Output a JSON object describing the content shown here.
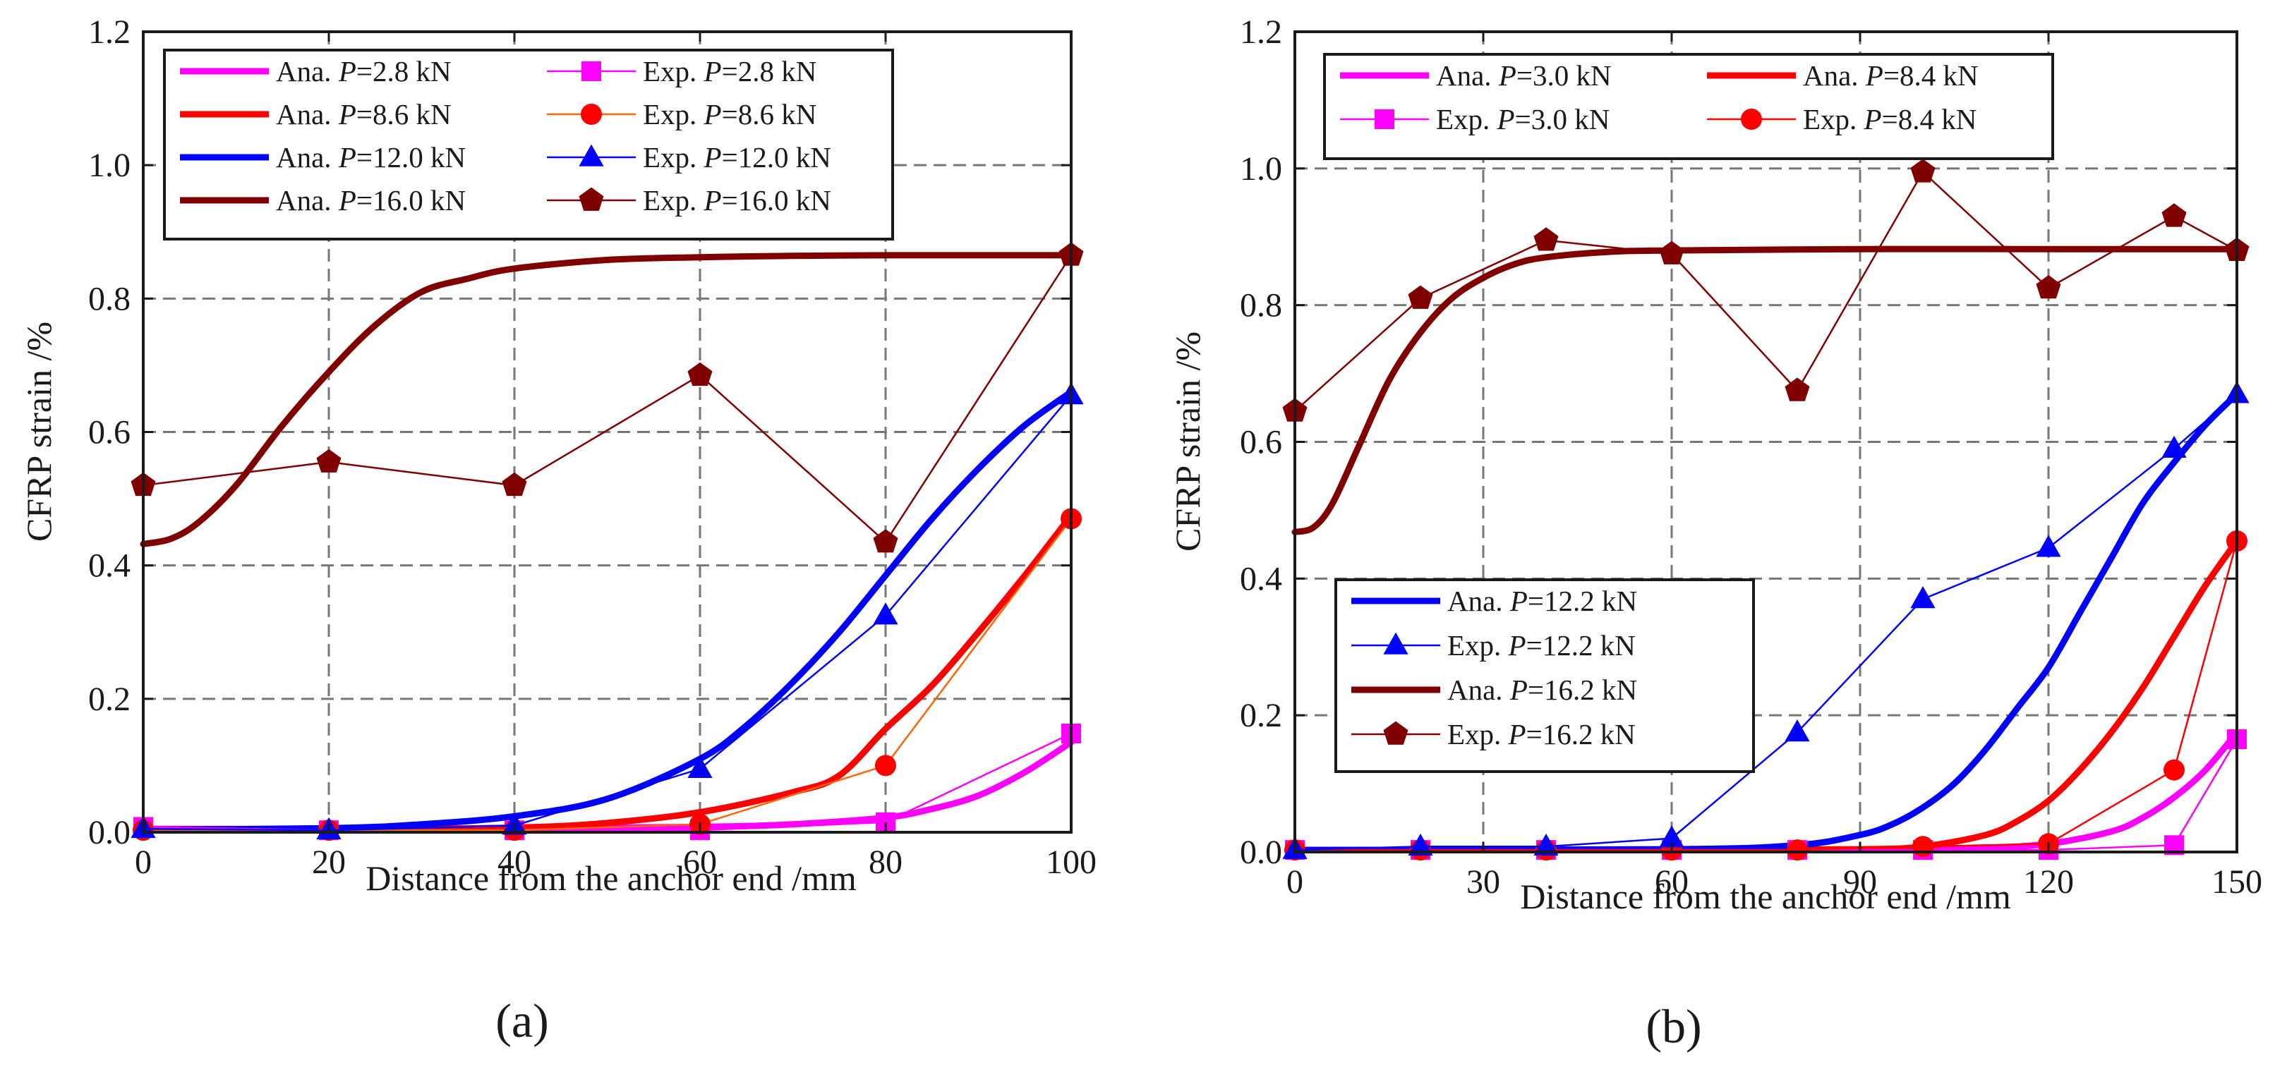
{
  "colors": {
    "magenta": "#ff00ff",
    "red": "#ff0000",
    "blue": "#0000ff",
    "darkred": "#800000",
    "orange": "#ff6600"
  },
  "chart_data": [
    {
      "type": "line",
      "caption": "(a)",
      "xlabel": "Distance from the anchor end /mm",
      "ylabel": "CFRP strain /%",
      "xlim": [
        0,
        100
      ],
      "ylim": [
        0,
        1.2
      ],
      "xticks": [
        "0",
        "20",
        "40",
        "60",
        "80",
        "100"
      ],
      "yticks": [
        "0.0",
        "0.2",
        "0.4",
        "0.6",
        "0.8",
        "1.0",
        "1.2"
      ],
      "grid": true,
      "legend_position": "top-left",
      "series": [
        {
          "name": "Ana. P=2.8 kN",
          "kind": "analytical",
          "color": "#ff00ff",
          "x": [
            0,
            20,
            40,
            60,
            70,
            80,
            85,
            90,
            95,
            100
          ],
          "y": [
            0.005,
            0.005,
            0.006,
            0.008,
            0.012,
            0.022,
            0.035,
            0.055,
            0.09,
            0.135
          ]
        },
        {
          "name": "Exp. P=2.8 kN",
          "kind": "experimental",
          "color": "#ff00ff",
          "marker": "square",
          "x": [
            0,
            20,
            40,
            60,
            80,
            100
          ],
          "y": [
            0.008,
            0.003,
            0.003,
            0.003,
            0.015,
            0.148
          ]
        },
        {
          "name": "Ana. P=8.6 kN",
          "kind": "analytical",
          "color": "#ff0000",
          "x": [
            0,
            20,
            40,
            50,
            60,
            70,
            75,
            80,
            85,
            90,
            95,
            100
          ],
          "y": [
            0.003,
            0.004,
            0.007,
            0.014,
            0.03,
            0.06,
            0.085,
            0.155,
            0.22,
            0.3,
            0.385,
            0.475
          ]
        },
        {
          "name": "Exp. P=8.6 kN",
          "kind": "experimental",
          "color": "#ff6600",
          "marker": "circle",
          "marker_color": "#ff0000",
          "x": [
            0,
            20,
            40,
            60,
            80,
            100
          ],
          "y": [
            0.003,
            0.003,
            0.003,
            0.012,
            0.1,
            0.47
          ]
        },
        {
          "name": "Ana. P=12.0 kN",
          "kind": "analytical",
          "color": "#0000ff",
          "x": [
            0,
            20,
            30,
            40,
            50,
            60,
            65,
            70,
            75,
            80,
            85,
            90,
            95,
            100
          ],
          "y": [
            0.004,
            0.006,
            0.012,
            0.024,
            0.05,
            0.11,
            0.16,
            0.225,
            0.3,
            0.385,
            0.47,
            0.545,
            0.61,
            0.66
          ]
        },
        {
          "name": "Exp. P=12.0 kN",
          "kind": "experimental",
          "color": "#0000ff",
          "marker": "triangle",
          "x": [
            0,
            20,
            40,
            60,
            80,
            100
          ],
          "y": [
            0.005,
            0.003,
            0.01,
            0.095,
            0.325,
            0.655
          ]
        },
        {
          "name": "Ana. P=16.0 kN",
          "kind": "analytical",
          "color": "#800000",
          "x": [
            0,
            3,
            6,
            10,
            15,
            20,
            25,
            30,
            35,
            40,
            50,
            60,
            70,
            80,
            90,
            100
          ],
          "y": [
            0.432,
            0.44,
            0.465,
            0.52,
            0.61,
            0.69,
            0.76,
            0.81,
            0.83,
            0.845,
            0.858,
            0.862,
            0.864,
            0.865,
            0.865,
            0.865
          ]
        },
        {
          "name": "Exp. P=16.0 kN",
          "kind": "experimental",
          "color": "#800000",
          "marker": "pentagon",
          "x": [
            0,
            20,
            40,
            60,
            80,
            100
          ],
          "y": [
            0.52,
            0.555,
            0.52,
            0.685,
            0.435,
            0.865
          ]
        }
      ]
    },
    {
      "type": "line",
      "caption": "(b)",
      "xlabel": "Distance from the anchor end /mm",
      "ylabel": "CFRP strain /%",
      "xlim": [
        0,
        150
      ],
      "ylim": [
        0,
        1.2
      ],
      "xticks": [
        "0",
        "30",
        "60",
        "90",
        "120",
        "150"
      ],
      "yticks": [
        "0.0",
        "0.2",
        "0.4",
        "0.6",
        "0.8",
        "1.0",
        "1.2"
      ],
      "grid": true,
      "legend_position": "top-left and center-left",
      "series": [
        {
          "name": "Ana. P=3.0 kN",
          "kind": "analytical",
          "color": "#ff00ff",
          "x": [
            0,
            60,
            100,
            110,
            120,
            130,
            135,
            140,
            145,
            150
          ],
          "y": [
            0.003,
            0.003,
            0.004,
            0.006,
            0.012,
            0.03,
            0.05,
            0.08,
            0.12,
            0.175
          ]
        },
        {
          "name": "Exp. P=3.0 kN",
          "kind": "experimental",
          "color": "#ff00ff",
          "marker": "square",
          "x": [
            0,
            20,
            40,
            60,
            80,
            100,
            120,
            140,
            150
          ],
          "y": [
            0.003,
            0.003,
            0.003,
            0.003,
            0.003,
            0.003,
            0.003,
            0.01,
            0.165
          ]
        },
        {
          "name": "Ana. P=8.4 kN",
          "kind": "analytical",
          "color": "#ff0000",
          "x": [
            0,
            60,
            90,
            100,
            110,
            115,
            120,
            125,
            130,
            135,
            140,
            145,
            150
          ],
          "y": [
            0.003,
            0.003,
            0.004,
            0.008,
            0.025,
            0.045,
            0.075,
            0.12,
            0.175,
            0.24,
            0.315,
            0.39,
            0.455
          ]
        },
        {
          "name": "Exp. P=8.4 kN",
          "kind": "experimental",
          "color": "#ff0000",
          "marker": "circle",
          "x": [
            0,
            20,
            40,
            60,
            80,
            100,
            120,
            140,
            150
          ],
          "y": [
            0.003,
            0.003,
            0.003,
            0.003,
            0.003,
            0.008,
            0.012,
            0.12,
            0.455
          ]
        },
        {
          "name": "Ana. P=12.2 kN",
          "kind": "analytical",
          "color": "#0000ff",
          "x": [
            0,
            60,
            80,
            90,
            95,
            100,
            105,
            110,
            115,
            120,
            125,
            130,
            135,
            140,
            145,
            150
          ],
          "y": [
            0.003,
            0.004,
            0.01,
            0.025,
            0.04,
            0.065,
            0.1,
            0.15,
            0.21,
            0.27,
            0.35,
            0.43,
            0.51,
            0.57,
            0.625,
            0.67
          ]
        },
        {
          "name": "Exp. P=12.2 kN",
          "kind": "experimental",
          "color": "#0000ff",
          "marker": "triangle",
          "x": [
            0,
            20,
            40,
            60,
            80,
            100,
            120,
            140,
            150
          ],
          "y": [
            0.003,
            0.008,
            0.008,
            0.02,
            0.175,
            0.37,
            0.445,
            0.59,
            0.67
          ]
        },
        {
          "name": "Ana. P=16.2 kN",
          "kind": "analytical",
          "color": "#800000",
          "x": [
            0,
            3,
            6,
            10,
            15,
            20,
            25,
            30,
            35,
            40,
            50,
            60,
            90,
            120,
            150
          ],
          "y": [
            0.468,
            0.475,
            0.51,
            0.59,
            0.69,
            0.76,
            0.81,
            0.84,
            0.86,
            0.87,
            0.878,
            0.88,
            0.882,
            0.882,
            0.882
          ]
        },
        {
          "name": "Exp. P=16.2 kN",
          "kind": "experimental",
          "color": "#800000",
          "marker": "pentagon",
          "x": [
            0,
            20,
            40,
            60,
            80,
            100,
            120,
            140,
            150
          ],
          "y": [
            0.645,
            0.81,
            0.895,
            0.875,
            0.675,
            0.995,
            0.825,
            0.93,
            0.88
          ]
        }
      ]
    }
  ]
}
